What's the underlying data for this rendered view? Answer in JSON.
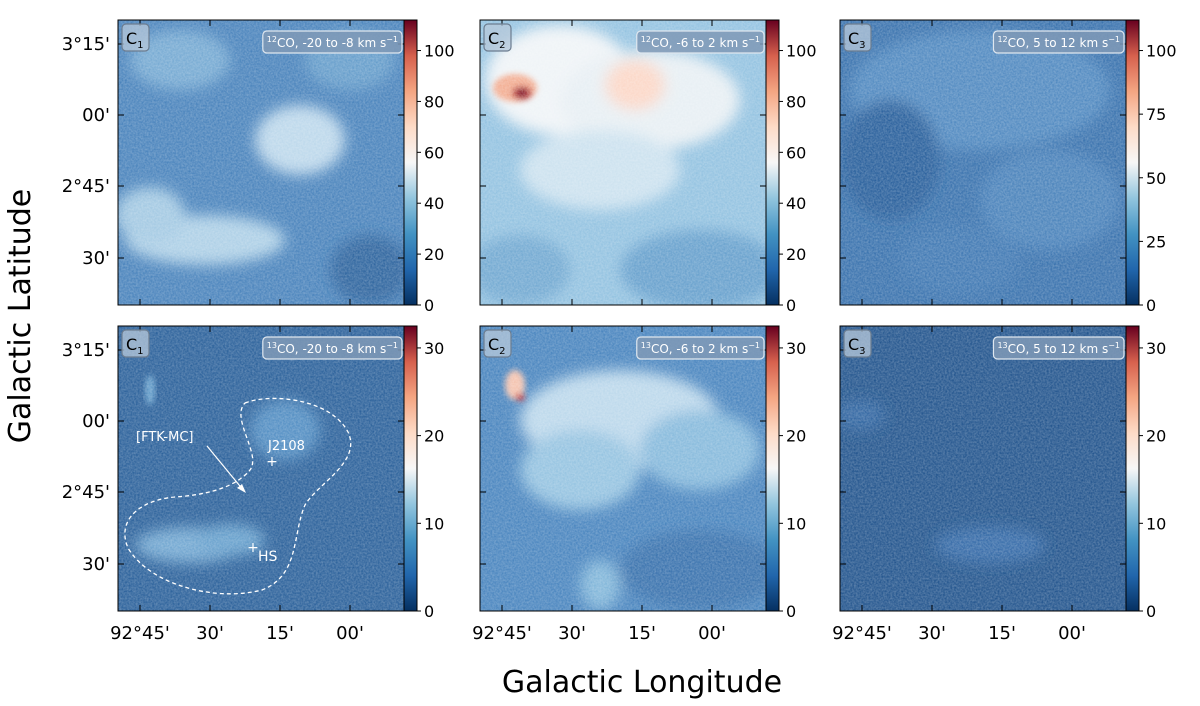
{
  "chart_data": {
    "type": "heatmap",
    "colormap": "RdBu_r",
    "xlabel": "Galactic Longitude",
    "ylabel": "Galactic Latitude",
    "x_ticks": [
      "92°45'",
      "30'",
      "15'",
      "00'"
    ],
    "y_ticks": [
      "3°15'",
      "00'",
      "2°45'",
      "30'"
    ],
    "panels": [
      {
        "id": "C",
        "sub": "1",
        "tracer_sup": "12",
        "tracer": "CO",
        "vrange": ", -20 to -8 km s",
        "unit_sup": "−1",
        "cbar_ticks": [
          "0",
          "20",
          "40",
          "60",
          "80",
          "100"
        ],
        "cbar_max": 112
      },
      {
        "id": "C",
        "sub": "2",
        "tracer_sup": "12",
        "tracer": "CO",
        "vrange": ", -6 to 2 km s",
        "unit_sup": "−1",
        "cbar_ticks": [
          "0",
          "20",
          "40",
          "60",
          "80",
          "100"
        ],
        "cbar_max": 112
      },
      {
        "id": "C",
        "sub": "3",
        "tracer_sup": "12",
        "tracer": "CO",
        "vrange": ", 5 to 12 km s",
        "unit_sup": "−1",
        "cbar_ticks": [
          "0",
          "25",
          "50",
          "75",
          "100"
        ],
        "cbar_max": 112
      },
      {
        "id": "C",
        "sub": "1",
        "tracer_sup": "13",
        "tracer": "CO",
        "vrange": ", -20 to -8 km s",
        "unit_sup": "−1",
        "cbar_ticks": [
          "0",
          "10",
          "20",
          "30"
        ],
        "cbar_max": 32.5
      },
      {
        "id": "C",
        "sub": "2",
        "tracer_sup": "13",
        "tracer": "CO",
        "vrange": ", -6 to 2 km s",
        "unit_sup": "−1",
        "cbar_ticks": [
          "0",
          "10",
          "20",
          "30"
        ],
        "cbar_max": 32.5
      },
      {
        "id": "C",
        "sub": "3",
        "tracer_sup": "13",
        "tracer": "CO",
        "vrange": ", 5 to 12 km s",
        "unit_sup": "−1",
        "cbar_ticks": [
          "0",
          "10",
          "20",
          "30"
        ],
        "cbar_max": 32.5
      }
    ],
    "annotations": {
      "ftk_label": "[FTK-MC]",
      "j2108_label": "J2108",
      "hs_label": "HS"
    }
  }
}
